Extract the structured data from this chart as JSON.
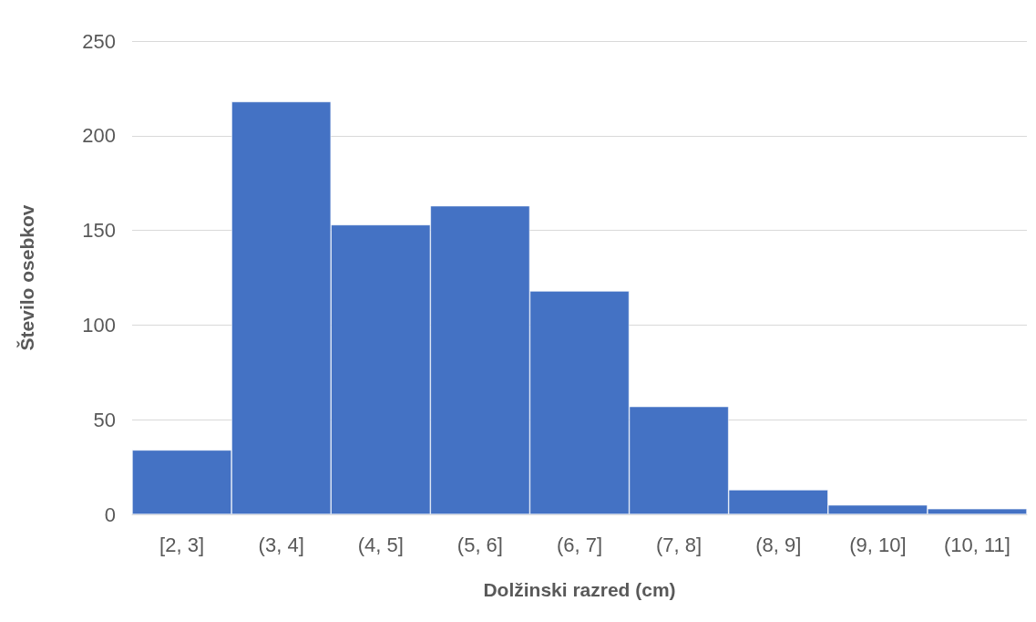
{
  "chart_data": {
    "type": "bar",
    "xlabel": "Dolžinski razred (cm)",
    "ylabel": "Število osebkov",
    "categories": [
      "[2, 3]",
      "(3, 4]",
      "(4, 5]",
      "(5, 6]",
      "(6, 7]",
      "(7, 8]",
      "(8, 9]",
      "(9, 10]",
      "(10, 11]"
    ],
    "values": [
      34,
      218,
      153,
      163,
      118,
      57,
      13,
      5,
      3
    ],
    "color": "#4472c4",
    "ylim": [
      0,
      250
    ],
    "yticks": [
      0,
      50,
      100,
      150,
      200,
      250
    ],
    "grid": "y"
  }
}
